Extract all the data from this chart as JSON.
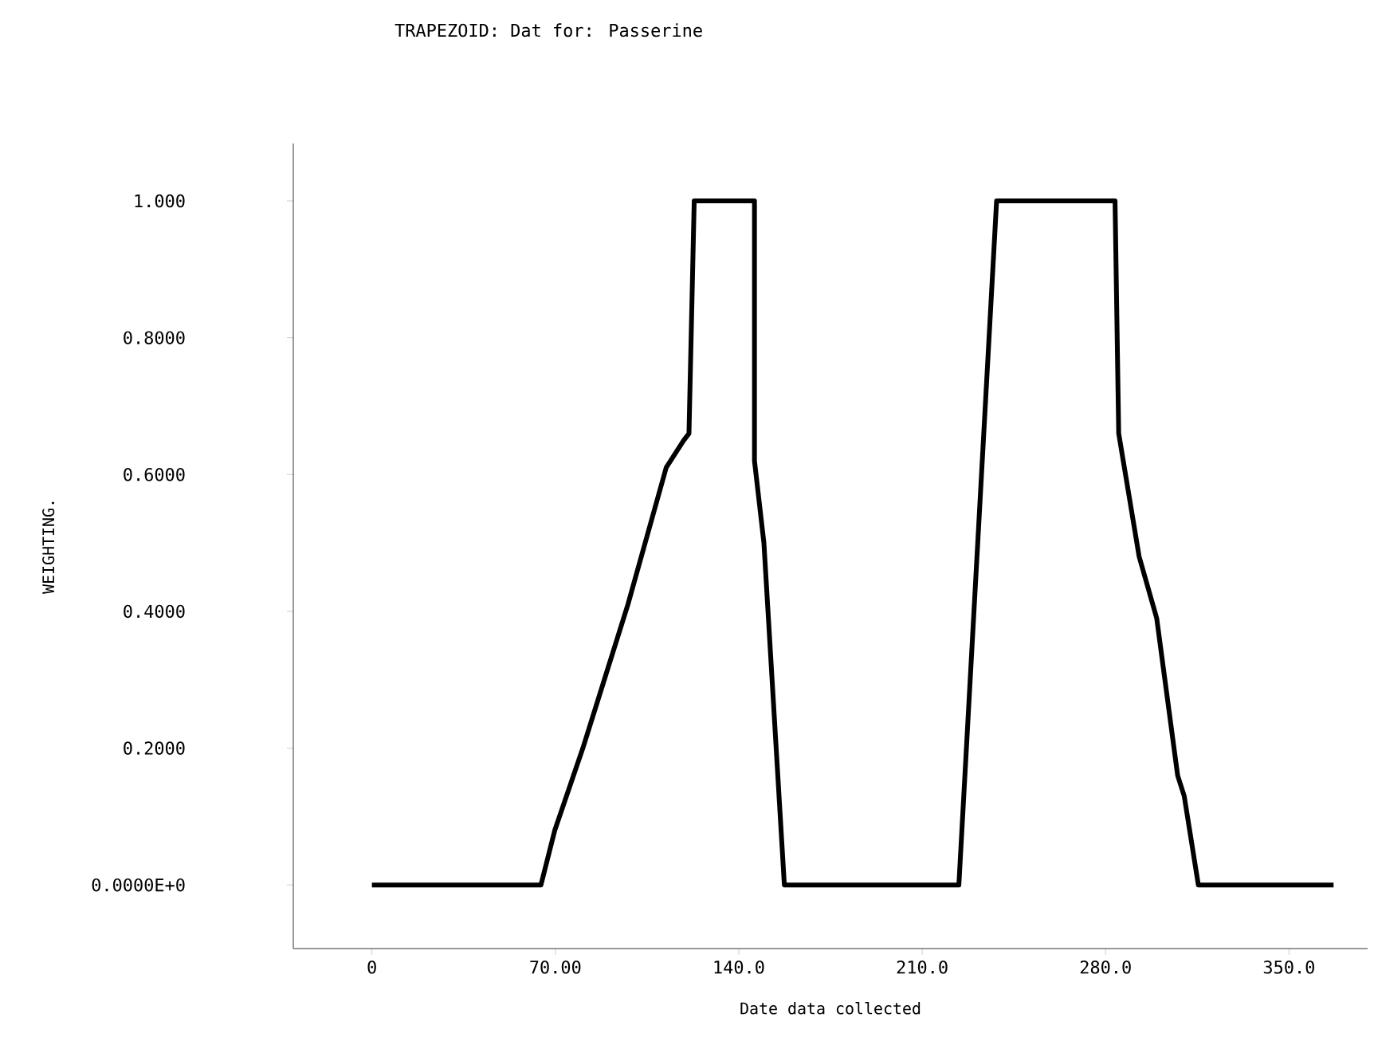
{
  "chart_data": {
    "type": "line",
    "title": "TRAPEZOID: Dat      for: Passerine",
    "xlabel": "Date data collected",
    "ylabel": "WEIGHTING.",
    "x": [
      0,
      64.5,
      69.8,
      80.5,
      97.7,
      112.3,
      119,
      121,
      123,
      146,
      146,
      149.6,
      157.4,
      224,
      238.4,
      283.6,
      285,
      292.8,
      299.5,
      307.5,
      310,
      315.4,
      367
    ],
    "series": [
      {
        "color": "#000000",
        "values": [
          0,
          0,
          0.08,
          0.2,
          0.41,
          0.61,
          0.65,
          0.66,
          1,
          1,
          0.62,
          0.5,
          0,
          0,
          1,
          1,
          0.66,
          0.48,
          0.39,
          0.16,
          0.13,
          0,
          0
        ]
      }
    ],
    "xlim": [
      -30,
      380
    ],
    "ylim": [
      -0.093,
      1.084
    ],
    "xticks": [
      0,
      {
        "value": 70,
        "label": "70.00"
      },
      {
        "value": 140,
        "label": "140.0"
      },
      {
        "value": 210,
        "label": "210.0"
      },
      {
        "value": 280,
        "label": "280.0"
      },
      {
        "value": 350,
        "label": "350.0"
      }
    ],
    "yticks": [
      {
        "value": 0,
        "label": "0.0000E+0"
      },
      {
        "value": 0.2,
        "label": "0.2000"
      },
      {
        "value": 0.4,
        "label": "0.4000"
      },
      {
        "value": 0.6,
        "label": "0.6000"
      },
      {
        "value": 0.8,
        "label": "0.8000"
      },
      {
        "value": 1,
        "label": "1.000"
      }
    ]
  }
}
